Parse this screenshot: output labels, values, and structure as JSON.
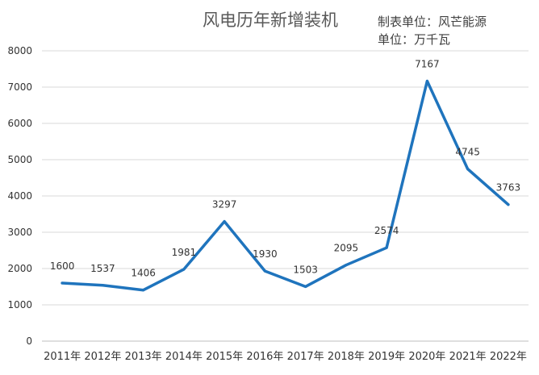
{
  "chart_data": {
    "type": "line",
    "title": "风电历年新增装机",
    "notes": [
      "制表单位：风芒能源",
      "单位：万千瓦"
    ],
    "categories": [
      "2011年",
      "2012年",
      "2013年",
      "2014年",
      "2015年",
      "2016年",
      "2017年",
      "2018年",
      "2019年",
      "2020年",
      "2021年",
      "2022年"
    ],
    "series": [
      {
        "values": [
          1600,
          1537,
          1406,
          1981,
          3297,
          1930,
          1503,
          2095,
          2574,
          7167,
          4745,
          3763
        ],
        "color": "#1f74bd"
      }
    ],
    "data_labels": [
      "1600",
      "1537",
      "1406",
      "1981",
      "3297",
      "1930",
      "1503",
      "2095",
      "2574",
      "7167",
      "4745",
      "3763"
    ],
    "y_ticks": [
      "0",
      "1000",
      "2000",
      "3000",
      "4000",
      "5000",
      "6000",
      "7000",
      "8000"
    ],
    "y_tick_values": [
      0,
      1000,
      2000,
      3000,
      4000,
      5000,
      6000,
      7000,
      8000
    ],
    "ylim": [
      0,
      8000
    ],
    "grid": true,
    "legend": "none"
  }
}
